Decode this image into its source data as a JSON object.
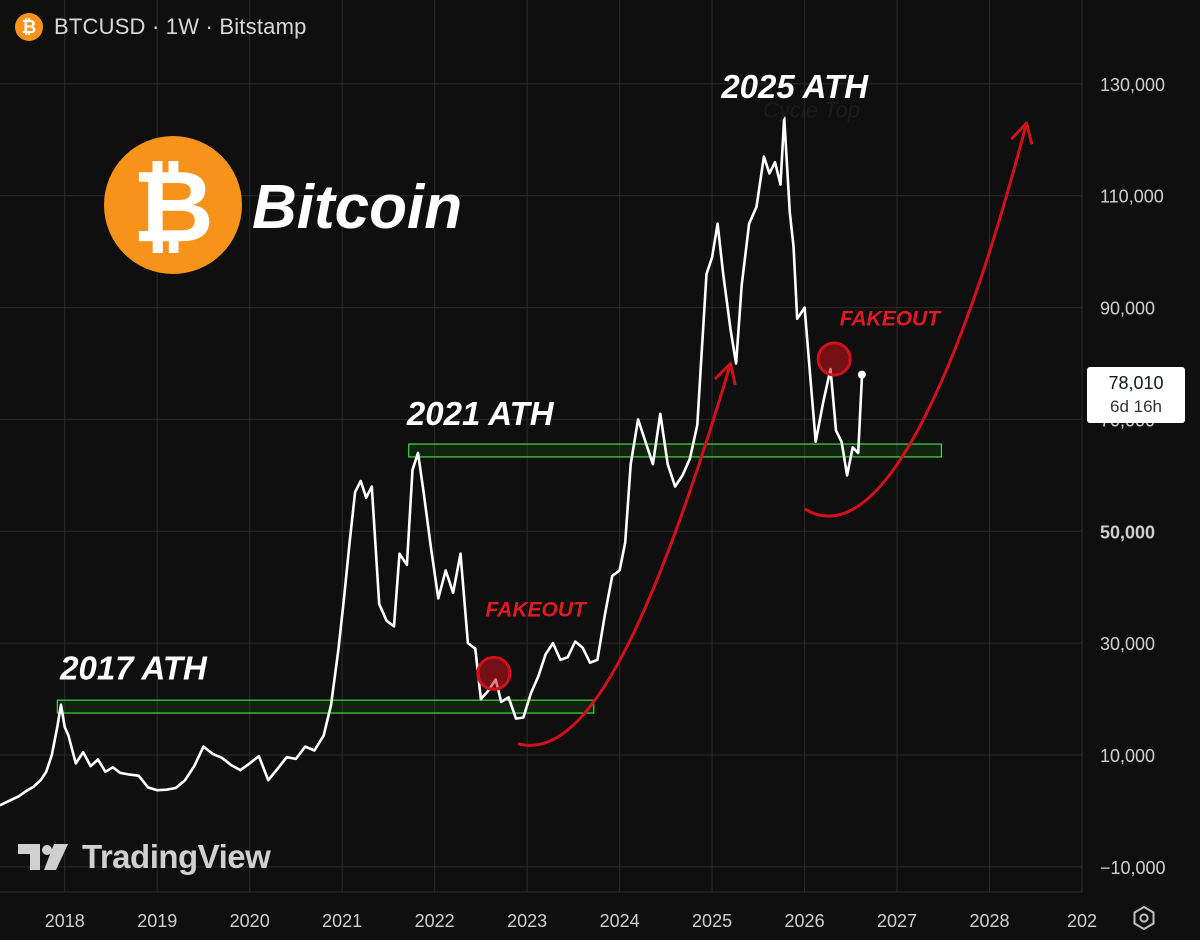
{
  "header": {
    "title": "BTCUSD · 1W · Bitstamp",
    "icon": "bitcoin-icon"
  },
  "colors": {
    "background": "#0f0f0f",
    "line": "#ffffff",
    "grid": "#2a2a2a",
    "zone_stroke": "#3ddc3d",
    "arrow": "#d0101a",
    "fakeout_text": "#e01a22",
    "bitcoin_orange": "#f7931a"
  },
  "branding": {
    "coin_label": "Bitcoin",
    "tradingview": "TradingView"
  },
  "price_label": {
    "value": "78,010",
    "countdown": "6d 16h"
  },
  "chart_data": {
    "type": "line",
    "title": "BTCUSD · 1W · Bitstamp",
    "xlabel": "",
    "ylabel": "",
    "x_ticks": [
      "2018",
      "2019",
      "2020",
      "2021",
      "2022",
      "2023",
      "2024",
      "2025",
      "2026",
      "2027",
      "2028",
      "202"
    ],
    "y_ticks": [
      {
        "value": 130000,
        "label": "130,000"
      },
      {
        "value": 110000,
        "label": "110,000"
      },
      {
        "value": 90000,
        "label": "90,000"
      },
      {
        "value": 70000,
        "label": "70,000"
      },
      {
        "value": 50000,
        "label": "50,000"
      },
      {
        "value": 30000,
        "label": "30,000"
      },
      {
        "value": 10000,
        "label": "10,000"
      },
      {
        "value": -10000,
        "label": "−10,000"
      }
    ],
    "xlim": [
      2017.3,
      2029.0
    ],
    "ylim": [
      -14500,
      145000
    ],
    "grid": true,
    "series": [
      {
        "points": [
          [
            2017.3,
            1000
          ],
          [
            2017.4,
            1800
          ],
          [
            2017.5,
            2600
          ],
          [
            2017.58,
            3500
          ],
          [
            2017.66,
            4300
          ],
          [
            2017.74,
            5500
          ],
          [
            2017.8,
            7000
          ],
          [
            2017.86,
            10000
          ],
          [
            2017.92,
            15000
          ],
          [
            2017.96,
            19000
          ],
          [
            2018.0,
            15000
          ],
          [
            2018.04,
            13500
          ],
          [
            2018.08,
            11000
          ],
          [
            2018.12,
            8500
          ],
          [
            2018.2,
            10500
          ],
          [
            2018.28,
            8000
          ],
          [
            2018.36,
            9200
          ],
          [
            2018.44,
            7000
          ],
          [
            2018.52,
            7800
          ],
          [
            2018.6,
            6800
          ],
          [
            2018.7,
            6500
          ],
          [
            2018.8,
            6300
          ],
          [
            2018.9,
            4200
          ],
          [
            2019.0,
            3700
          ],
          [
            2019.1,
            3800
          ],
          [
            2019.2,
            4100
          ],
          [
            2019.3,
            5500
          ],
          [
            2019.4,
            8000
          ],
          [
            2019.5,
            11500
          ],
          [
            2019.6,
            10200
          ],
          [
            2019.7,
            9500
          ],
          [
            2019.8,
            8200
          ],
          [
            2019.9,
            7300
          ],
          [
            2020.0,
            8500
          ],
          [
            2020.1,
            9800
          ],
          [
            2020.2,
            5500
          ],
          [
            2020.3,
            7500
          ],
          [
            2020.4,
            9600
          ],
          [
            2020.5,
            9300
          ],
          [
            2020.6,
            11500
          ],
          [
            2020.7,
            10800
          ],
          [
            2020.8,
            13500
          ],
          [
            2020.88,
            19000
          ],
          [
            2020.96,
            29000
          ],
          [
            2021.02,
            38000
          ],
          [
            2021.08,
            48000
          ],
          [
            2021.14,
            57000
          ],
          [
            2021.2,
            59000
          ],
          [
            2021.26,
            56000
          ],
          [
            2021.32,
            58000
          ],
          [
            2021.4,
            37000
          ],
          [
            2021.48,
            34000
          ],
          [
            2021.56,
            33000
          ],
          [
            2021.62,
            46000
          ],
          [
            2021.7,
            44000
          ],
          [
            2021.76,
            61000
          ],
          [
            2021.82,
            64000
          ],
          [
            2021.88,
            57000
          ],
          [
            2021.96,
            47000
          ],
          [
            2022.04,
            38000
          ],
          [
            2022.12,
            43000
          ],
          [
            2022.2,
            39000
          ],
          [
            2022.28,
            46000
          ],
          [
            2022.36,
            30000
          ],
          [
            2022.44,
            29000
          ],
          [
            2022.5,
            20000
          ],
          [
            2022.58,
            21500
          ],
          [
            2022.66,
            23500
          ],
          [
            2022.72,
            19500
          ],
          [
            2022.8,
            20300
          ],
          [
            2022.88,
            16500
          ],
          [
            2022.96,
            16700
          ],
          [
            2023.04,
            21000
          ],
          [
            2023.12,
            24000
          ],
          [
            2023.2,
            28000
          ],
          [
            2023.28,
            30000
          ],
          [
            2023.36,
            27000
          ],
          [
            2023.44,
            27500
          ],
          [
            2023.52,
            30300
          ],
          [
            2023.6,
            29200
          ],
          [
            2023.68,
            26500
          ],
          [
            2023.76,
            27000
          ],
          [
            2023.84,
            35000
          ],
          [
            2023.92,
            42000
          ],
          [
            2024.0,
            43000
          ],
          [
            2024.06,
            48000
          ],
          [
            2024.12,
            62000
          ],
          [
            2024.2,
            70000
          ],
          [
            2024.28,
            66000
          ],
          [
            2024.36,
            62000
          ],
          [
            2024.44,
            71000
          ],
          [
            2024.52,
            62000
          ],
          [
            2024.6,
            58000
          ],
          [
            2024.68,
            60000
          ],
          [
            2024.76,
            63000
          ],
          [
            2024.84,
            69000
          ],
          [
            2024.88,
            80000
          ],
          [
            2024.94,
            96000
          ],
          [
            2025.0,
            99000
          ],
          [
            2025.06,
            105000
          ],
          [
            2025.12,
            96000
          ],
          [
            2025.2,
            86000
          ],
          [
            2025.26,
            80000
          ],
          [
            2025.32,
            94000
          ],
          [
            2025.4,
            105000
          ],
          [
            2025.48,
            108000
          ],
          [
            2025.56,
            117000
          ],
          [
            2025.62,
            114000
          ],
          [
            2025.68,
            116000
          ],
          [
            2025.74,
            112000
          ],
          [
            2025.78,
            124000
          ],
          [
            2025.84,
            107000
          ],
          [
            2025.88,
            101000
          ],
          [
            2025.92,
            88000
          ],
          [
            2026.0,
            90000
          ],
          [
            2026.06,
            78000
          ],
          [
            2026.12,
            66000
          ],
          [
            2026.2,
            73000
          ],
          [
            2026.28,
            79000
          ],
          [
            2026.34,
            68000
          ],
          [
            2026.4,
            66000
          ],
          [
            2026.46,
            60000
          ],
          [
            2026.52,
            65000
          ],
          [
            2026.58,
            64000
          ],
          [
            2026.62,
            77500
          ]
        ]
      }
    ],
    "last_value": 78010,
    "zones": [
      {
        "x_start": 2017.92,
        "x_end": 2023.72,
        "y_low": 17500,
        "y_high": 19800
      },
      {
        "x_start": 2021.72,
        "x_end": 2027.48,
        "y_low": 63300,
        "y_high": 65600
      }
    ],
    "annotations": [
      {
        "text": "2017 ATH",
        "x": 2017.95,
        "y": 23500
      },
      {
        "text": "2021 ATH",
        "x": 2021.7,
        "y": 69000
      },
      {
        "text": "2025 ATH",
        "x": 2025.1,
        "y": 127500
      },
      {
        "text": "Cycle Top",
        "x": 2025.55,
        "y": 124000
      },
      {
        "text": "FAKEOUT",
        "x": 2022.55,
        "y": 34800
      },
      {
        "text": "FAKEOUT",
        "x": 2026.38,
        "y": 86800
      }
    ],
    "highlight_circles": [
      {
        "x": 2022.64,
        "y": 24600
      },
      {
        "x": 2026.32,
        "y": 80800
      }
    ],
    "projection_arrows": [
      {
        "points": [
          [
            2022.9,
            12000
          ],
          [
            2023.6,
            9000
          ],
          [
            2024.3,
            30000
          ],
          [
            2025.2,
            80000
          ]
        ]
      },
      {
        "points": [
          [
            2026.0,
            54000
          ],
          [
            2026.9,
            45000
          ],
          [
            2027.8,
            85000
          ],
          [
            2028.4,
            123000
          ]
        ]
      }
    ]
  }
}
